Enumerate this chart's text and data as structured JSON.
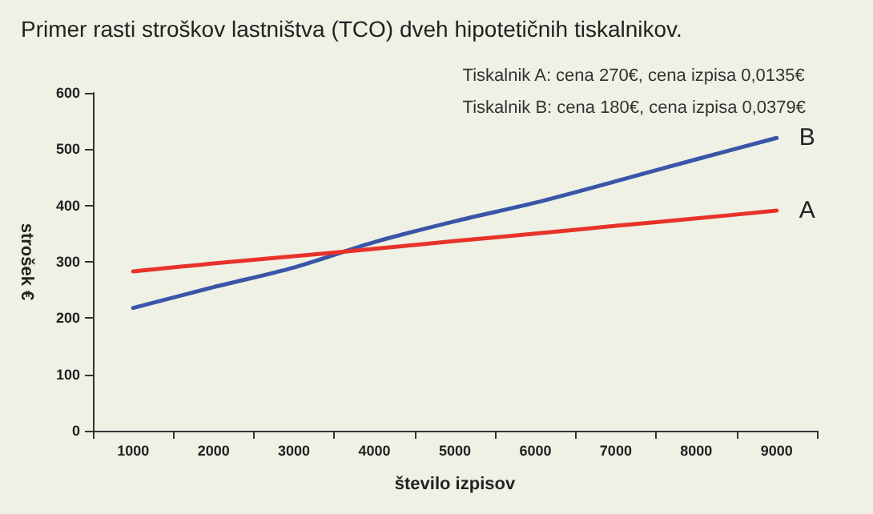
{
  "chart_data": {
    "type": "line",
    "title": "Primer rasti stroškov lastništva (TCO) dveh hipotetičnih tiskalnikov.",
    "xlabel": "število izpisov",
    "ylabel": "strošek €",
    "annotations": [
      "Tiskalnik A: cena 270€, cena izpisa 0,0135€",
      "Tiskalnik B: cena 180€, cena izpisa 0,0379€"
    ],
    "categories": [
      "1000",
      "2000",
      "3000",
      "4000",
      "5000",
      "6000",
      "7000",
      "8000",
      "9000"
    ],
    "series": [
      {
        "name": "B",
        "color": "#3a55a8",
        "values": [
          218,
          255,
          290,
          335,
          372,
          405,
          443,
          482,
          520
        ]
      },
      {
        "name": "A",
        "color": "#e8322a",
        "values": [
          283,
          297,
          310,
          323,
          337,
          350,
          364,
          377,
          391
        ]
      }
    ],
    "ylim": [
      0,
      600
    ],
    "yticks": [
      0,
      100,
      200,
      300,
      400,
      500,
      600
    ],
    "grid": false,
    "legend": false,
    "marker": "none",
    "line_style": "solid"
  }
}
